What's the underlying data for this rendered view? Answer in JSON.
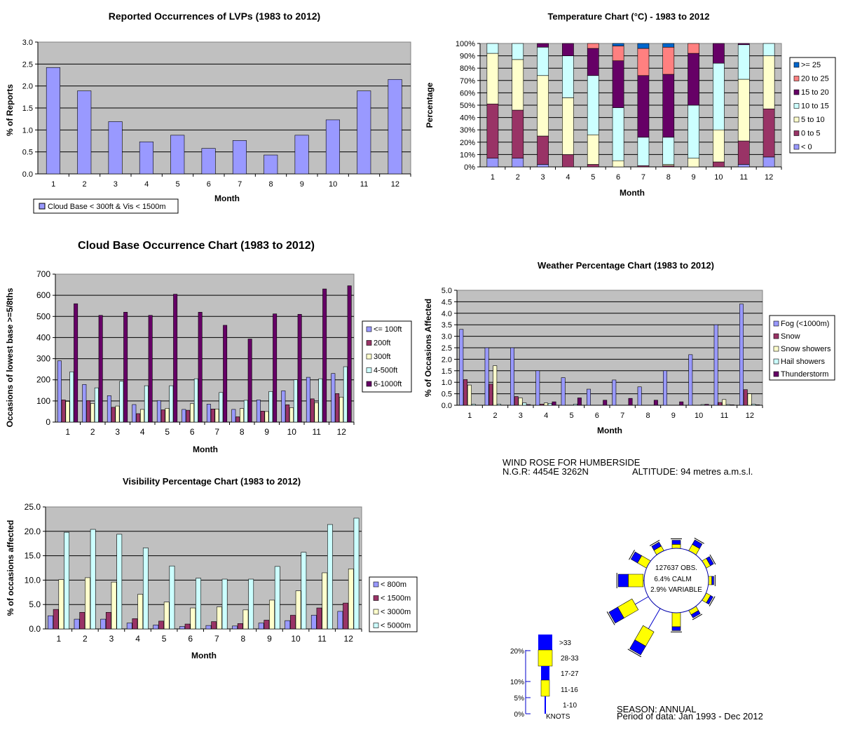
{
  "months": [
    "1",
    "2",
    "3",
    "4",
    "5",
    "6",
    "7",
    "8",
    "9",
    "10",
    "11",
    "12"
  ],
  "lvp": {
    "title": "Reported Occurrences of LVPs (1983 to 2012)",
    "ylabel": "% of Reports",
    "xlabel": "Month",
    "yticks": [
      "0.0",
      "0.5",
      "1.0",
      "1.5",
      "2.0",
      "2.5",
      "3.0"
    ],
    "legend": "Cloud Base < 300ft & Vis < 1500m"
  },
  "temp": {
    "title": "Temperature Chart (°C) - 1983 to 2012",
    "ylabel": "Percentage",
    "xlabel": "Month",
    "yticks": [
      "0%",
      "10%",
      "20%",
      "30%",
      "40%",
      "50%",
      "60%",
      "70%",
      "80%",
      "90%",
      "100%"
    ]
  },
  "cloud": {
    "title": "Cloud Base Occurrence Chart (1983 to 2012)",
    "ylabel": "Occasions of lowest base >=5/8ths",
    "xlabel": "Month",
    "yticks": [
      "0",
      "100",
      "200",
      "300",
      "400",
      "500",
      "600",
      "700"
    ]
  },
  "wx": {
    "title": "Weather Percentage Chart (1983 to 2012)",
    "ylabel": "% of Occasions Affected",
    "xlabel": "Month",
    "yticks": [
      "0.0",
      "0.5",
      "1.0",
      "1.5",
      "2.0",
      "2.5",
      "3.0",
      "3.5",
      "4.0",
      "4.5",
      "5.0"
    ]
  },
  "vis": {
    "title": "Visibility Percentage Chart (1983 to 2012)",
    "ylabel": "% of occasions affected",
    "xlabel": "Month",
    "yticks": [
      "0.0",
      "5.0",
      "10.0",
      "15.0",
      "20.0",
      "25.0"
    ]
  },
  "windrose": {
    "title": "WIND ROSE FOR HUMBERSIDE",
    "ngr": "N.G.R: 4454E  3262N",
    "altitude": "ALTITUDE:   94 metres a.m.s.l.",
    "obs": "127637 OBS.",
    "calm": "6.4% CALM",
    "variable": "2.9% VARIABLE",
    "season": "SEASON:  ANNUAL",
    "period": "Period of data: Jan 1993 - Dec 2012",
    "key_pct": [
      "20%",
      "10%",
      "5%",
      "0%"
    ],
    "key_speeds": [
      ">33",
      "28-33",
      "17-27",
      "11-16",
      "1-10"
    ],
    "key_unit": "KNOTS",
    "colors": {
      "yellow": "#ffff00",
      "blue": "#0000ff"
    },
    "directions": [
      {
        "deg": 0,
        "pct": 2.5,
        "strong": 0.35
      },
      {
        "deg": 30,
        "pct": 3.8,
        "strong": 0.35
      },
      {
        "deg": 60,
        "pct": 2.6,
        "strong": 0.3
      },
      {
        "deg": 90,
        "pct": 1.6,
        "strong": 0.2
      },
      {
        "deg": 120,
        "pct": 2.4,
        "strong": 0.25
      },
      {
        "deg": 150,
        "pct": 2.6,
        "strong": 0.3
      },
      {
        "deg": 180,
        "pct": 5.5,
        "strong": 0.2
      },
      {
        "deg": 210,
        "pct": 15.5,
        "strong": 0.38
      },
      {
        "deg": 240,
        "pct": 13.0,
        "strong": 0.38
      },
      {
        "deg": 270,
        "pct": 8.0,
        "strong": 0.4
      },
      {
        "deg": 300,
        "pct": 5.5,
        "strong": 0.4
      },
      {
        "deg": 330,
        "pct": 3.0,
        "strong": 0.35
      }
    ]
  },
  "chart_data": [
    {
      "type": "bar",
      "title": "Reported Occurrences of LVPs (1983 to 2012)",
      "xlabel": "Month",
      "ylabel": "% of Reports",
      "ylim": [
        0,
        3.0
      ],
      "categories": [
        "1",
        "2",
        "3",
        "4",
        "5",
        "6",
        "7",
        "8",
        "9",
        "10",
        "11",
        "12"
      ],
      "series": [
        {
          "name": "Cloud Base < 300ft & Vis < 1500m",
          "color": "#9999ff",
          "values": [
            2.42,
            1.89,
            1.19,
            0.73,
            0.88,
            0.58,
            0.76,
            0.43,
            0.88,
            1.23,
            1.89,
            2.15
          ]
        }
      ],
      "legend": "bottom-left",
      "grid": true
    },
    {
      "type": "bar",
      "stacked": true,
      "title": "Temperature Chart (°C) - 1983 to 2012",
      "xlabel": "Month",
      "ylabel": "Percentage",
      "ylim": [
        0,
        100
      ],
      "categories": [
        "1",
        "2",
        "3",
        "4",
        "5",
        "6",
        "7",
        "8",
        "9",
        "10",
        "11",
        "12"
      ],
      "series": [
        {
          "name": "< 0",
          "color": "#9999ff",
          "values": [
            7,
            7,
            2,
            0,
            0,
            0,
            0,
            0,
            0,
            0,
            2,
            8
          ]
        },
        {
          "name": "0 to 5",
          "color": "#993366",
          "values": [
            44,
            39,
            23,
            10,
            2,
            0,
            1,
            1,
            0,
            4,
            19,
            39
          ]
        },
        {
          "name": "5 to 10",
          "color": "#ffffcc",
          "values": [
            41,
            41,
            49,
            46,
            24,
            5,
            0,
            1,
            7,
            26,
            50,
            43
          ]
        },
        {
          "name": "10 to 15",
          "color": "#ccffff",
          "values": [
            8,
            13,
            23,
            34,
            48,
            43,
            23,
            22,
            43,
            54,
            28,
            10
          ]
        },
        {
          "name": "15 to 20",
          "color": "#660066",
          "values": [
            0,
            0,
            3,
            10,
            22,
            38,
            50,
            51,
            42,
            16,
            1,
            0
          ]
        },
        {
          "name": "20 to 25",
          "color": "#ff8080",
          "values": [
            0,
            0,
            0,
            0,
            4,
            12,
            22,
            22,
            8,
            0,
            0,
            0
          ]
        },
        {
          "name": ">= 25",
          "color": "#0066cc",
          "values": [
            0,
            0,
            0,
            0,
            0,
            2,
            4,
            3,
            0,
            0,
            0,
            0
          ]
        }
      ],
      "legend": "right",
      "grid": true
    },
    {
      "type": "bar",
      "title": "Cloud Base Occurrence Chart (1983 to 2012)",
      "xlabel": "Month",
      "ylabel": "Occasions of lowest base >=5/8ths",
      "ylim": [
        0,
        700
      ],
      "categories": [
        "1",
        "2",
        "3",
        "4",
        "5",
        "6",
        "7",
        "8",
        "9",
        "10",
        "11",
        "12"
      ],
      "series": [
        {
          "name": "<= 100ft",
          "color": "#9999ff",
          "values": [
            290,
            178,
            125,
            83,
            102,
            60,
            85,
            60,
            105,
            148,
            212,
            230
          ]
        },
        {
          "name": "200ft",
          "color": "#993366",
          "values": [
            105,
            102,
            70,
            40,
            58,
            56,
            62,
            25,
            52,
            82,
            110,
            135
          ]
        },
        {
          "name": "300ft",
          "color": "#ffffcc",
          "values": [
            98,
            88,
            76,
            60,
            65,
            87,
            62,
            64,
            50,
            68,
            92,
            118
          ]
        },
        {
          "name": "4-500ft",
          "color": "#ccffff",
          "values": [
            238,
            162,
            193,
            172,
            172,
            205,
            140,
            103,
            145,
            200,
            205,
            262
          ]
        },
        {
          "name": "6-1000ft",
          "color": "#660066",
          "values": [
            560,
            505,
            520,
            505,
            605,
            520,
            458,
            393,
            512,
            510,
            630,
            645
          ]
        }
      ],
      "legend": "right",
      "grid": true
    },
    {
      "type": "bar",
      "title": "Weather Percentage Chart (1983 to 2012)",
      "xlabel": "Month",
      "ylabel": "% of Occasions Affected",
      "ylim": [
        0,
        5.0
      ],
      "categories": [
        "1",
        "2",
        "3",
        "4",
        "5",
        "6",
        "7",
        "8",
        "9",
        "10",
        "11",
        "12"
      ],
      "series": [
        {
          "name": "Fog (<1000m)",
          "color": "#9999ff",
          "values": [
            3.3,
            2.5,
            2.5,
            1.5,
            1.2,
            0.7,
            1.1,
            0.8,
            1.5,
            2.2,
            3.5,
            4.4
          ]
        },
        {
          "name": "Snow",
          "color": "#993366",
          "values": [
            1.12,
            0.92,
            0.38,
            0.05,
            0,
            0,
            0,
            0,
            0,
            0,
            0.12,
            0.68
          ]
        },
        {
          "name": "Snow showers",
          "color": "#ffffcc",
          "values": [
            0.88,
            1.72,
            0.32,
            0.1,
            0,
            0,
            0,
            0,
            0,
            0,
            0.25,
            0.5
          ]
        },
        {
          "name": "Hail showers",
          "color": "#ccffff",
          "values": [
            0.05,
            0.05,
            0.1,
            0.08,
            0.05,
            0,
            0,
            0,
            0,
            0.03,
            0.03,
            0.05
          ]
        },
        {
          "name": "Thunderstorm",
          "color": "#660066",
          "values": [
            0,
            0,
            0.03,
            0.15,
            0.32,
            0.22,
            0.3,
            0.22,
            0.15,
            0.04,
            0.02,
            0.02
          ]
        }
      ],
      "legend": "right",
      "grid": true
    },
    {
      "type": "bar",
      "title": "Visibility Percentage Chart (1983 to 2012)",
      "xlabel": "Month",
      "ylabel": "% of occasions affected",
      "ylim": [
        0,
        25.0
      ],
      "categories": [
        "1",
        "2",
        "3",
        "4",
        "5",
        "6",
        "7",
        "8",
        "9",
        "10",
        "11",
        "12"
      ],
      "series": [
        {
          "name": "< 800m",
          "color": "#9999ff",
          "values": [
            2.7,
            2.0,
            2.0,
            1.2,
            0.8,
            0.5,
            0.7,
            0.6,
            1.2,
            1.7,
            2.8,
            3.6
          ]
        },
        {
          "name": "< 1500m",
          "color": "#993366",
          "values": [
            4.0,
            3.4,
            3.4,
            2.1,
            1.6,
            1.0,
            1.5,
            1.1,
            1.8,
            2.8,
            4.3,
            5.3
          ]
        },
        {
          "name": "< 3000m",
          "color": "#ffffcc",
          "values": [
            10.1,
            10.5,
            9.6,
            7.1,
            5.5,
            4.3,
            4.5,
            3.9,
            5.9,
            7.8,
            11.5,
            12.3
          ]
        },
        {
          "name": "< 5000m",
          "color": "#ccffff",
          "values": [
            19.8,
            20.4,
            19.4,
            16.6,
            12.9,
            10.4,
            10.2,
            10.2,
            12.8,
            15.7,
            21.4,
            22.7
          ]
        }
      ],
      "legend": "right",
      "grid": true
    }
  ]
}
